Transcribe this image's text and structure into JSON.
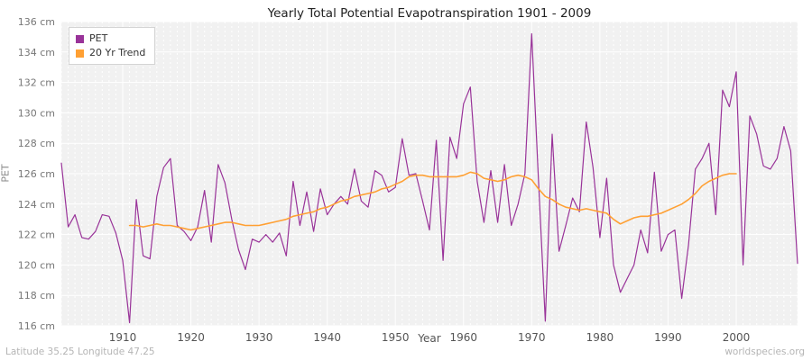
{
  "title": "Yearly Total Potential Evapotranspiration 1901 - 2009",
  "footer": {
    "left": "Latitude 35.25 Longitude 47.25",
    "right": "worldspecies.org"
  },
  "chart_data": {
    "type": "line",
    "title": "Yearly Total Potential Evapotranspiration 1901 - 2009",
    "xlabel": "Year",
    "ylabel": "PET",
    "x_start": 1901,
    "x_end": 2009,
    "ylim": [
      116,
      136
    ],
    "ytick_step": 2,
    "ytick_suffix": " cm",
    "xticks": [
      1910,
      1920,
      1930,
      1940,
      1950,
      1960,
      1970,
      1980,
      1990,
      2000
    ],
    "grid": true,
    "plot_bg": "#f1f1f1",
    "legend_position": "top-left",
    "series": [
      {
        "name": "PET",
        "color": "#993399",
        "values": [
          126.7,
          122.5,
          123.3,
          121.8,
          121.7,
          122.2,
          123.3,
          123.2,
          122.1,
          120.3,
          116.2,
          124.3,
          120.6,
          120.4,
          124.5,
          126.4,
          127.0,
          122.6,
          122.2,
          121.6,
          122.5,
          124.9,
          121.5,
          126.6,
          125.4,
          123.0,
          121.0,
          119.7,
          121.7,
          121.5,
          122.0,
          121.5,
          122.1,
          120.6,
          125.5,
          122.6,
          124.8,
          122.2,
          125.0,
          123.3,
          124.0,
          124.5,
          124.0,
          126.3,
          124.2,
          123.8,
          126.2,
          125.9,
          124.8,
          125.1,
          128.3,
          125.9,
          126.0,
          124.2,
          122.3,
          128.2,
          120.3,
          128.4,
          127.0,
          130.6,
          131.7,
          125.5,
          122.8,
          126.2,
          122.8,
          126.6,
          122.6,
          124.0,
          126.0,
          135.2,
          125.5,
          116.3,
          128.6,
          120.9,
          122.6,
          124.4,
          123.5,
          129.4,
          126.4,
          121.8,
          125.7,
          120.0,
          118.2,
          119.1,
          120.0,
          122.3,
          120.8,
          126.1,
          120.9,
          122.0,
          122.3,
          117.8,
          121.3,
          126.3,
          127.0,
          128.0,
          123.3,
          131.5,
          130.4,
          132.7,
          120.0,
          129.8,
          128.6,
          126.5,
          126.3,
          127.0,
          129.1,
          127.5,
          120.1
        ]
      },
      {
        "name": "20 Yr Trend",
        "color": "#ffa033",
        "values": [
          null,
          null,
          null,
          null,
          null,
          null,
          null,
          null,
          null,
          null,
          122.6,
          122.6,
          122.5,
          122.6,
          122.7,
          122.6,
          122.6,
          122.5,
          122.4,
          122.3,
          122.4,
          122.5,
          122.6,
          122.7,
          122.8,
          122.8,
          122.7,
          122.6,
          122.6,
          122.6,
          122.7,
          122.8,
          122.9,
          123.0,
          123.2,
          123.3,
          123.4,
          123.5,
          123.7,
          123.8,
          124.0,
          124.2,
          124.3,
          124.5,
          124.6,
          124.7,
          124.8,
          125.0,
          125.1,
          125.3,
          125.5,
          125.8,
          125.9,
          125.9,
          125.8,
          125.8,
          125.8,
          125.8,
          125.8,
          125.9,
          126.1,
          126.0,
          125.7,
          125.6,
          125.5,
          125.6,
          125.8,
          125.9,
          125.8,
          125.6,
          125.0,
          124.5,
          124.3,
          124.0,
          123.8,
          123.7,
          123.6,
          123.7,
          123.6,
          123.5,
          123.4,
          123.0,
          122.7,
          122.9,
          123.1,
          123.2,
          123.2,
          123.3,
          123.4,
          123.6,
          123.8,
          124.0,
          124.3,
          124.7,
          125.2,
          125.5,
          125.7,
          125.9,
          126.0,
          126.0,
          null,
          null,
          null,
          null,
          null,
          null,
          null,
          null,
          null
        ]
      }
    ]
  }
}
